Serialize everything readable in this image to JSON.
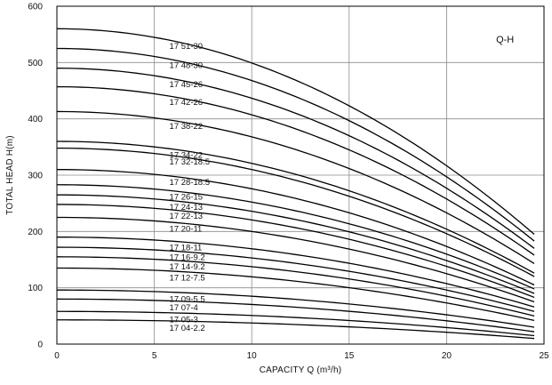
{
  "chart_data": {
    "type": "line",
    "title": "",
    "corner_label": "Q-H",
    "xlabel": "CAPACITY  Q (m³/h)",
    "ylabel": "TOTAL HEAD  H(m)",
    "xlim": [
      0,
      25
    ],
    "ylim": [
      0,
      600
    ],
    "xticks": [
      0,
      5,
      10,
      15,
      20,
      25
    ],
    "yticks": [
      0,
      100,
      200,
      300,
      400,
      500,
      600
    ],
    "grid": true,
    "legend": "labels on curves",
    "q_max": 24.5,
    "series": [
      {
        "name": "17 51-30",
        "h0": 560,
        "h_end": 195,
        "label_at": 5.5
      },
      {
        "name": "17 48-30",
        "h0": 525,
        "h_end": 183,
        "label_at": 5.5
      },
      {
        "name": "17 45-26",
        "h0": 490,
        "h_end": 170,
        "label_at": 5.5
      },
      {
        "name": "17 42-26",
        "h0": 457,
        "h_end": 158,
        "label_at": 5.5
      },
      {
        "name": "17 38-22",
        "h0": 413,
        "h_end": 143,
        "label_at": 5.5
      },
      {
        "name": "17 34-22",
        "h0": 360,
        "h_end": 126,
        "label_at": 5.5
      },
      {
        "name": "17 32-18.5",
        "h0": 348,
        "h_end": 120,
        "label_at": 5.5
      },
      {
        "name": "17 28-18.5",
        "h0": 310,
        "h_end": 105,
        "label_at": 5.5
      },
      {
        "name": "17 26-15",
        "h0": 283,
        "h_end": 98,
        "label_at": 5.5
      },
      {
        "name": "17 24-13",
        "h0": 265,
        "h_end": 90,
        "label_at": 5.5
      },
      {
        "name": "17 22-13",
        "h0": 248,
        "h_end": 83,
        "label_at": 5.5
      },
      {
        "name": "17 20-11",
        "h0": 225,
        "h_end": 75,
        "label_at": 5.5
      },
      {
        "name": "17 18-11",
        "h0": 190,
        "h_end": 66,
        "label_at": 5.5
      },
      {
        "name": "17 16-9.2",
        "h0": 172,
        "h_end": 58,
        "label_at": 5.5
      },
      {
        "name": "17 14-9.2",
        "h0": 155,
        "h_end": 50,
        "label_at": 5.5
      },
      {
        "name": "17 12-7.5",
        "h0": 135,
        "h_end": 42,
        "label_at": 5.5
      },
      {
        "name": "17 09-5.5",
        "h0": 96,
        "h_end": 30,
        "label_at": 5.5
      },
      {
        "name": "17 07-4",
        "h0": 80,
        "h_end": 22,
        "label_at": 5.5
      },
      {
        "name": "17 05-3",
        "h0": 58,
        "h_end": 15,
        "label_at": 5.5
      },
      {
        "name": "17 04-2.2",
        "h0": 43,
        "h_end": 10,
        "label_at": 5.5
      }
    ]
  },
  "colors": {
    "curve": "#000000",
    "grid": "#8c8c8c",
    "frame": "#000000",
    "text": "#111111"
  }
}
